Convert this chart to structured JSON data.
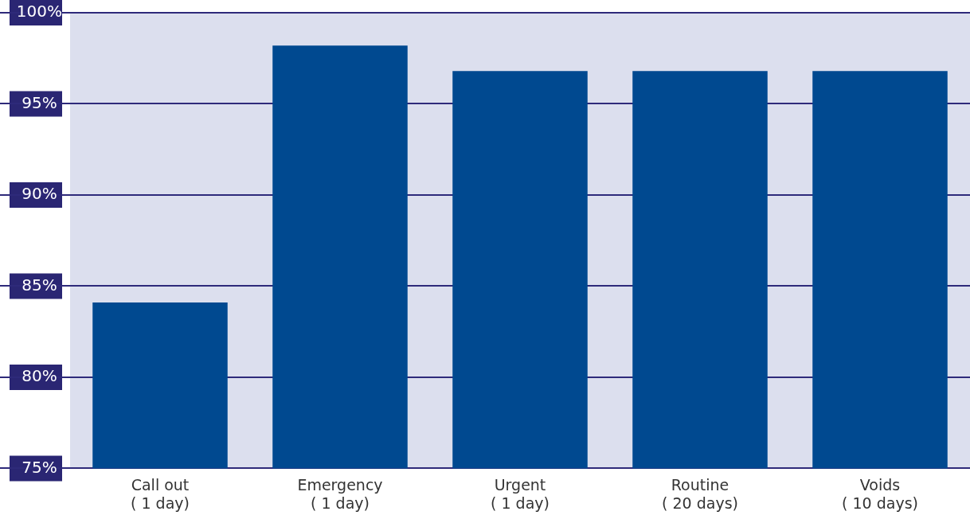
{
  "chart_data": {
    "type": "bar",
    "categories": [
      "Call out\n( 1 day)",
      "Emergency\n( 1 day)",
      "Urgent\n( 1 day)",
      "Routine\n( 20 days)",
      "Voids\n( 10 days)"
    ],
    "values": [
      84.1,
      98.2,
      96.8,
      96.8,
      96.8
    ],
    "color": "#004990",
    "ylim": [
      75,
      100
    ],
    "yticks": [
      {
        "value": 75,
        "label": "75%"
      },
      {
        "value": 80,
        "label": "80%"
      },
      {
        "value": 85,
        "label": "85%"
      },
      {
        "value": 90,
        "label": "90%"
      },
      {
        "value": 95,
        "label": "95%"
      },
      {
        "value": 100,
        "label": "100%"
      }
    ],
    "grid": "y"
  }
}
